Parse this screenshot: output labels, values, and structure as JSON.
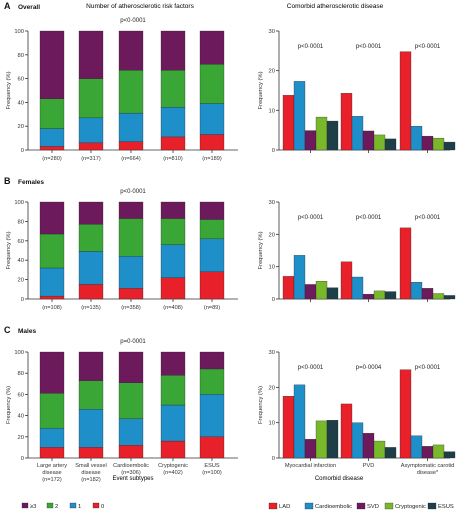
{
  "figure": {
    "header_left": "Number of atherosclerotic risk factors",
    "header_right": "Comorbid atherosclerotic disease",
    "x_title_left": "Event subtypes",
    "x_title_right": "Comorbid disease",
    "legend_left": [
      {
        "label": "≥3",
        "color": "#6d1a5d"
      },
      {
        "label": "2",
        "color": "#3aa635"
      },
      {
        "label": "1",
        "color": "#1f8fc9"
      },
      {
        "label": "0",
        "color": "#e8202a"
      }
    ],
    "legend_right": [
      {
        "label": "LAD",
        "color": "#e8202a"
      },
      {
        "label": "Cardioembolic",
        "color": "#1f8fc9"
      },
      {
        "label": "SVD",
        "color": "#6d1a5d"
      },
      {
        "label": "Cryptogenic",
        "color": "#78b82a"
      },
      {
        "label": "ESUS",
        "color": "#1f3f48"
      }
    ]
  },
  "chart_data": [
    {
      "type": "bar",
      "stacked": true,
      "panel": "A",
      "panel_title": "Overall",
      "ylabel": "Frequency (%)",
      "ylim": [
        0,
        100
      ],
      "yticks": [
        0,
        20,
        40,
        60,
        80,
        100
      ],
      "annotation": "p<0·0001",
      "categories": [
        "Large artery disease",
        "Small vessel disease",
        "Cardioembolic",
        "Cryptogenic",
        "ESUS"
      ],
      "show_category_labels": false,
      "n_labels": [
        "(n=280)",
        "(n=317)",
        "(n=664)",
        "(n=810)",
        "(n=189)"
      ],
      "series": [
        {
          "name": "0",
          "values": [
            3,
            6,
            7,
            11,
            13
          ]
        },
        {
          "name": "1",
          "values": [
            15,
            21,
            24,
            25,
            26
          ]
        },
        {
          "name": "2",
          "values": [
            25,
            33,
            36,
            31,
            33
          ]
        },
        {
          "name": "≥3",
          "values": [
            57,
            40,
            33,
            33,
            28
          ]
        }
      ]
    },
    {
      "type": "bar",
      "panel": "A",
      "ylabel": "Frequency (%)",
      "ylim": [
        0,
        30
      ],
      "yticks": [
        0,
        10,
        20,
        30
      ],
      "categories": [
        "Myocardial infarction",
        "PVD",
        "Asymptomatic carotid disease*"
      ],
      "show_category_labels": false,
      "p_labels": [
        "p<0·0001",
        "p<0·0001",
        "p<0·0001"
      ],
      "series": [
        {
          "name": "LAD",
          "values": [
            13.8,
            14.3,
            24.8
          ]
        },
        {
          "name": "Cardioembolic",
          "values": [
            17.3,
            8.5,
            6.0
          ]
        },
        {
          "name": "SVD",
          "values": [
            4.9,
            4.8,
            3.5
          ]
        },
        {
          "name": "Cryptogenic",
          "values": [
            8.3,
            3.8,
            3.0
          ]
        },
        {
          "name": "ESUS",
          "values": [
            7.3,
            2.8,
            2.0
          ]
        }
      ]
    },
    {
      "type": "bar",
      "stacked": true,
      "panel": "B",
      "panel_title": "Females",
      "ylabel": "Frequency (%)",
      "ylim": [
        0,
        100
      ],
      "yticks": [
        0,
        20,
        40,
        60,
        80,
        100
      ],
      "annotation": "p<0·0001",
      "categories": [
        "Large artery disease",
        "Small vessel disease",
        "Cardioembolic",
        "Cryptogenic",
        "ESUS"
      ],
      "show_category_labels": false,
      "n_labels": [
        "(n=108)",
        "(n=135)",
        "(n=358)",
        "(n=408)",
        "(n=89)"
      ],
      "series": [
        {
          "name": "0",
          "values": [
            3,
            15,
            11,
            22,
            28
          ]
        },
        {
          "name": "1",
          "values": [
            29,
            34,
            33,
            34,
            34
          ]
        },
        {
          "name": "2",
          "values": [
            35,
            28,
            39,
            27,
            20
          ]
        },
        {
          "name": "≥3",
          "values": [
            33,
            23,
            17,
            17,
            18
          ]
        }
      ]
    },
    {
      "type": "bar",
      "panel": "B",
      "ylabel": "Frequency (%)",
      "ylim": [
        0,
        30
      ],
      "yticks": [
        0,
        10,
        20,
        30
      ],
      "categories": [
        "Myocardial infarction",
        "PVD",
        "Asymptomatic carotid disease*"
      ],
      "show_category_labels": false,
      "p_labels": [
        "p<0·0001",
        "p<0·0001",
        "p<0·0001"
      ],
      "series": [
        {
          "name": "LAD",
          "values": [
            7.0,
            11.5,
            22.0
          ]
        },
        {
          "name": "Cardioembolic",
          "values": [
            13.5,
            6.8,
            5.2
          ]
        },
        {
          "name": "SVD",
          "values": [
            4.5,
            1.5,
            3.3
          ]
        },
        {
          "name": "Cryptogenic",
          "values": [
            5.5,
            2.5,
            1.7
          ]
        },
        {
          "name": "ESUS",
          "values": [
            3.5,
            2.3,
            1.1
          ]
        }
      ]
    },
    {
      "type": "bar",
      "stacked": true,
      "panel": "C",
      "panel_title": "Males",
      "ylabel": "Frequency (%)",
      "ylim": [
        0,
        100
      ],
      "yticks": [
        0,
        20,
        40,
        60,
        80,
        100
      ],
      "annotation": "p=0·0001",
      "categories": [
        "Large artery disease",
        "Small vessel disease",
        "Cardioembolic",
        "Cryptogenic",
        "ESUS"
      ],
      "show_category_labels": true,
      "n_labels": [
        "(n=172)",
        "(n=182)",
        "(n=306)",
        "(n=402)",
        "(n=100)"
      ],
      "series": [
        {
          "name": "0",
          "values": [
            10,
            10,
            12,
            16,
            20
          ]
        },
        {
          "name": "1",
          "values": [
            18,
            36,
            25,
            34,
            40
          ]
        },
        {
          "name": "2",
          "values": [
            33,
            27,
            34,
            28,
            24
          ]
        },
        {
          "name": "≥3",
          "values": [
            39,
            27,
            29,
            22,
            16
          ]
        }
      ]
    },
    {
      "type": "bar",
      "panel": "C",
      "ylabel": "Frequency (%)",
      "ylim": [
        0,
        30
      ],
      "yticks": [
        0,
        10,
        20,
        30
      ],
      "categories": [
        "Myocardial infarction",
        "PVD",
        "Asymptomatic carotid disease*"
      ],
      "show_category_labels": true,
      "p_labels": [
        "p<0·0001",
        "p=0·0004",
        "p<0·0001"
      ],
      "series": [
        {
          "name": "LAD",
          "values": [
            17.5,
            15.3,
            25.0
          ]
        },
        {
          "name": "Cardioembolic",
          "values": [
            20.7,
            10.0,
            6.3
          ]
        },
        {
          "name": "SVD",
          "values": [
            5.3,
            7.0,
            3.3
          ]
        },
        {
          "name": "Cryptogenic",
          "values": [
            10.5,
            4.8,
            3.7
          ]
        },
        {
          "name": "ESUS",
          "values": [
            10.7,
            3.0,
            1.8
          ]
        }
      ]
    }
  ]
}
